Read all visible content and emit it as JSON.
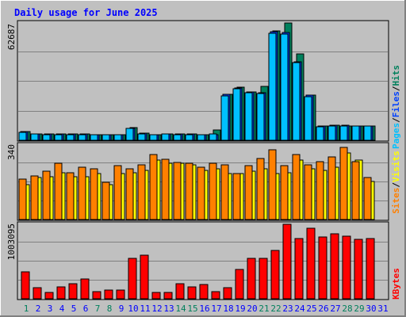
{
  "title": "Daily usage for June 2025",
  "colors": {
    "background": "#C0C0C0",
    "title": "#0000FF",
    "hits": "#00805C",
    "files": "#0040FF",
    "pages": "#00C0FF",
    "visits": "#FFFF00",
    "sites": "#FF8000",
    "kbytes": "#FF0000",
    "weekend_day_label": "#00805C",
    "weekday_label": "#0000FF",
    "panel_border": "#000000"
  },
  "day_labels": [
    "1",
    "2",
    "3",
    "4",
    "5",
    "6",
    "7",
    "8",
    "9",
    "10",
    "11",
    "12",
    "13",
    "14",
    "15",
    "16",
    "17",
    "18",
    "19",
    "20",
    "21",
    "22",
    "23",
    "24",
    "25",
    "26",
    "27",
    "28",
    "29",
    "30",
    "31"
  ],
  "weekend_days": [
    1,
    7,
    8,
    14,
    15,
    21,
    22,
    28,
    29
  ],
  "chart_data": [
    {
      "type": "bar",
      "name": "requests",
      "y_max_label": "62687",
      "ymax": 62687,
      "legend": [
        {
          "label": "Pages",
          "color": "#00C0FF"
        },
        {
          "label": "/",
          "color": "#000000"
        },
        {
          "label": "Files",
          "color": "#0040FF"
        },
        {
          "label": "/",
          "color": "#000000"
        },
        {
          "label": "Hits",
          "color": "#00805C"
        }
      ],
      "series": [
        {
          "name": "Hits",
          "values": [
            4500,
            3400,
            3300,
            3300,
            3300,
            3300,
            3000,
            3000,
            3000,
            6700,
            3800,
            3100,
            3400,
            3300,
            3300,
            3000,
            5300,
            24500,
            28200,
            26000,
            28700,
            58400,
            62687,
            46300,
            24300,
            7700,
            8000,
            7800,
            7800,
            7700,
            null
          ]
        },
        {
          "name": "Files",
          "values": [
            4500,
            3300,
            3300,
            3200,
            3200,
            3200,
            3000,
            3000,
            3000,
            6500,
            3800,
            3100,
            3400,
            3300,
            3200,
            3000,
            2900,
            24500,
            28000,
            26000,
            25400,
            58000,
            57500,
            42000,
            24000,
            7600,
            8000,
            7900,
            7800,
            7700,
            null
          ]
        },
        {
          "name": "Pages",
          "values": [
            4300,
            3200,
            3100,
            3000,
            3000,
            3000,
            2800,
            2800,
            2800,
            6200,
            3600,
            2900,
            3200,
            3100,
            3000,
            2800,
            3600,
            23800,
            27500,
            25300,
            24800,
            57200,
            56800,
            41500,
            23300,
            7400,
            7800,
            7600,
            7500,
            7500,
            null
          ]
        }
      ]
    },
    {
      "type": "bar",
      "name": "visitors",
      "y_max_label": "340",
      "ymax": 340,
      "legend": [
        {
          "label": "Sites",
          "color": "#FF8000"
        },
        {
          "label": "/",
          "color": "#000000"
        },
        {
          "label": "Visits",
          "color": "#FFFF00"
        }
      ],
      "series": [
        {
          "name": "Visits",
          "values": [
            160,
            190,
            195,
            215,
            195,
            195,
            210,
            160,
            210,
            215,
            225,
            270,
            255,
            255,
            250,
            225,
            230,
            210,
            210,
            220,
            230,
            210,
            215,
            270,
            230,
            225,
            240,
            305,
            270,
            175,
            null
          ]
        },
        {
          "name": "Sites",
          "values": [
            185,
            200,
            220,
            255,
            215,
            240,
            230,
            170,
            245,
            230,
            250,
            295,
            275,
            260,
            255,
            240,
            255,
            250,
            210,
            245,
            280,
            320,
            245,
            295,
            250,
            265,
            285,
            330,
            265,
            190,
            null
          ]
        }
      ]
    },
    {
      "type": "bar",
      "name": "kbytes",
      "y_max_label": "1003095",
      "ymax": 1003095,
      "legend": [
        {
          "label": "KBytes",
          "color": "#FF0000"
        }
      ],
      "series": [
        {
          "name": "KBytes",
          "values": [
            360000,
            150000,
            90000,
            155000,
            200000,
            270000,
            100000,
            120000,
            115000,
            540000,
            590000,
            90000,
            90000,
            205000,
            160000,
            190000,
            100000,
            150000,
            395000,
            545000,
            540000,
            655000,
            1003095,
            810000,
            950000,
            835000,
            880000,
            845000,
            800000,
            815000,
            null
          ]
        }
      ]
    }
  ]
}
